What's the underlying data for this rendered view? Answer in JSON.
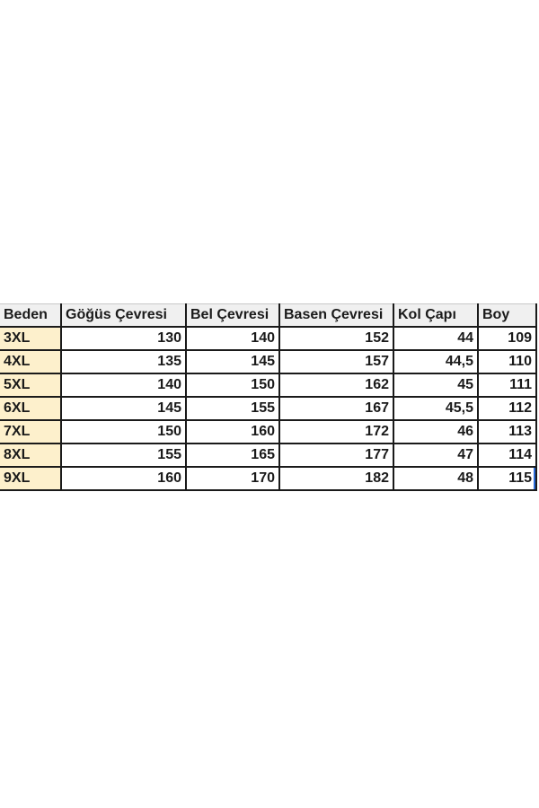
{
  "table": {
    "headers": [
      "Beden",
      "Göğüs Çevresi",
      "Bel Çevresi",
      "Basen Çevresi",
      "Kol Çapı",
      "Boy"
    ],
    "rows": [
      [
        "3XL",
        "130",
        "140",
        "152",
        "44",
        "109"
      ],
      [
        "4XL",
        "135",
        "145",
        "157",
        "44,5",
        "110"
      ],
      [
        "5XL",
        "140",
        "150",
        "162",
        "45",
        "111"
      ],
      [
        "6XL",
        "145",
        "155",
        "167",
        "45,5",
        "112"
      ],
      [
        "7XL",
        "150",
        "160",
        "172",
        "46",
        "113"
      ],
      [
        "8XL",
        "155",
        "165",
        "177",
        "47",
        "114"
      ],
      [
        "9XL",
        "160",
        "170",
        "182",
        "48",
        "115"
      ]
    ]
  },
  "colors": {
    "header_bg": "#f0f0f0",
    "size_column_bg": "#fdf0cc",
    "border": "#1a1a1a",
    "selection": "#2a6ad8"
  }
}
